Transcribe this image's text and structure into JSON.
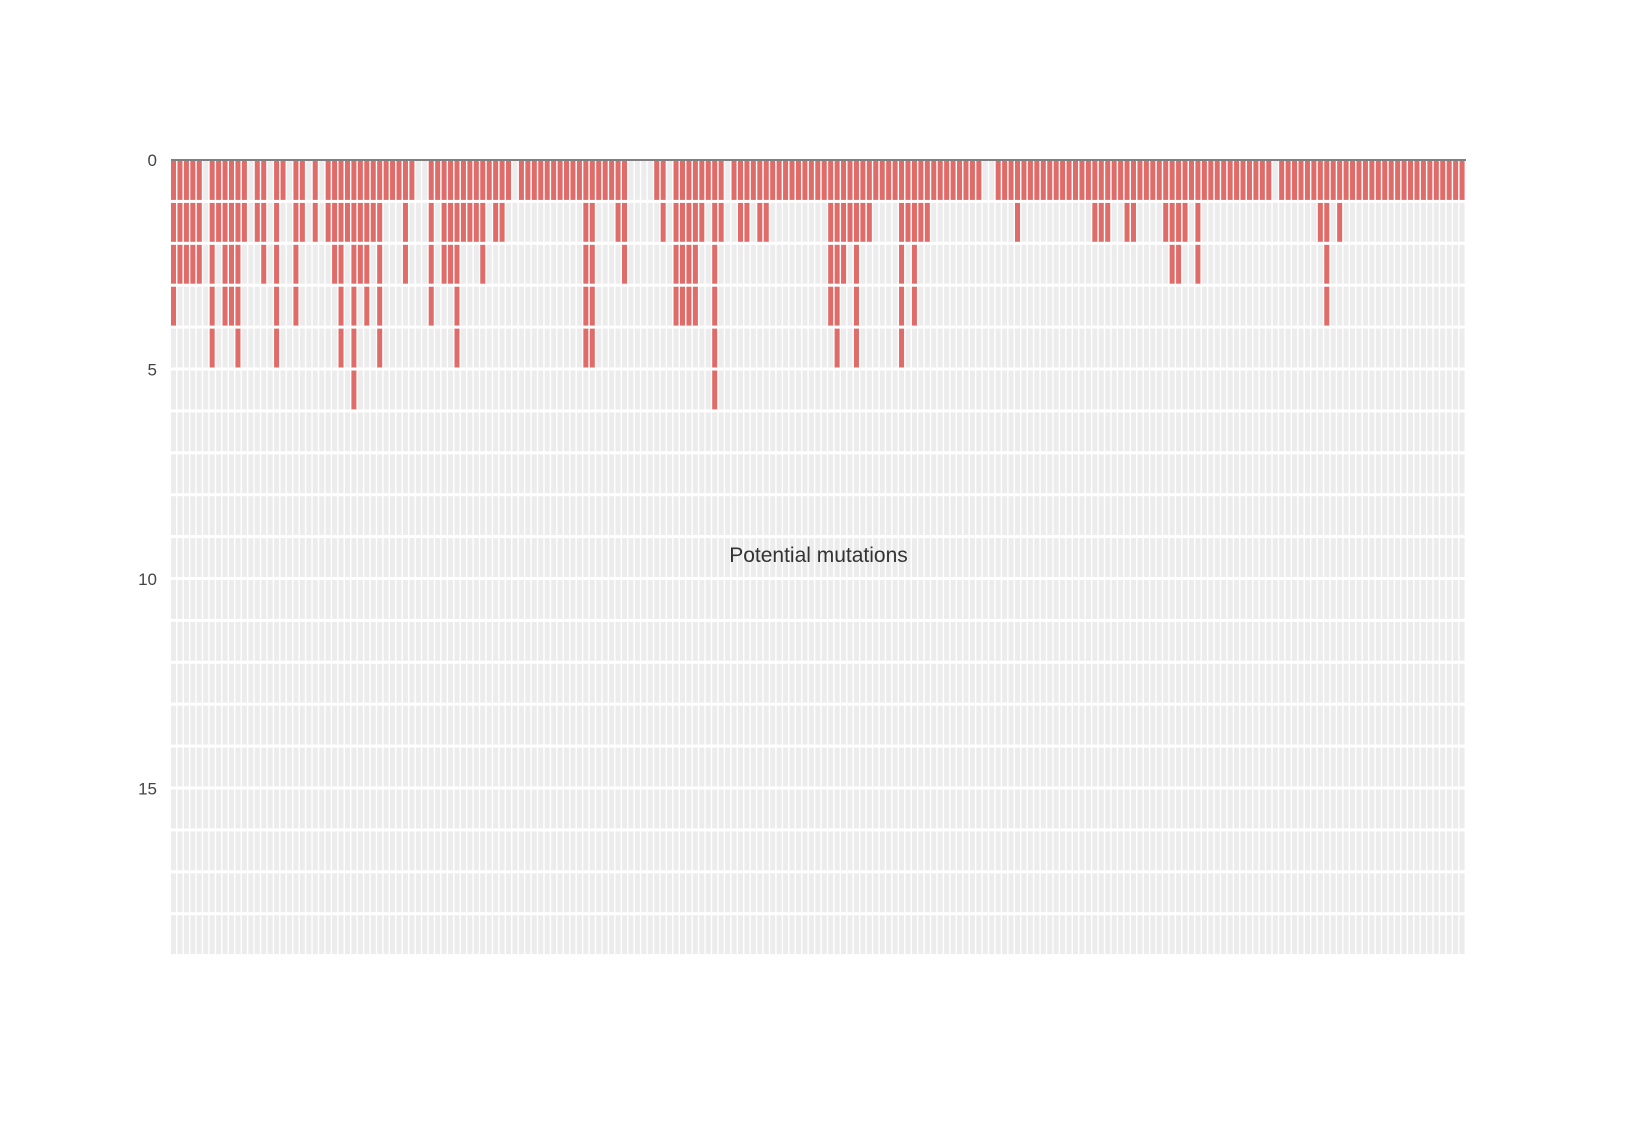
{
  "chart_data": {
    "type": "heatmap",
    "title": "",
    "xlabel": "",
    "ylabel": "",
    "annotation": "Potential mutations",
    "y_ticks": [
      0,
      5,
      10,
      15
    ],
    "rows": 19,
    "columns": 201,
    "ylim": [
      0,
      19
    ],
    "grid": false,
    "colors": {
      "observed": "#e06c6a",
      "potential": "#ececec",
      "baseline": "#555555",
      "tick_text": "#444444"
    },
    "observed_mutations_per_column": [
      4,
      3,
      3,
      3,
      3,
      0,
      5,
      2,
      4,
      4,
      5,
      2,
      0,
      2,
      3,
      0,
      5,
      1,
      0,
      4,
      2,
      0,
      2,
      0,
      2,
      3,
      5,
      2,
      6,
      3,
      4,
      2,
      5,
      1,
      1,
      1,
      3,
      1,
      0,
      0,
      4,
      1,
      3,
      3,
      5,
      2,
      2,
      2,
      3,
      1,
      2,
      2,
      1,
      0,
      1,
      1,
      1,
      1,
      1,
      1,
      1,
      1,
      1,
      1,
      5,
      5,
      1,
      1,
      1,
      2,
      3,
      0,
      0,
      0,
      0,
      1,
      2,
      0,
      4,
      4,
      4,
      4,
      2,
      1,
      6,
      2,
      0,
      1,
      2,
      2,
      1,
      2,
      2,
      1,
      1,
      1,
      1,
      1,
      1,
      1,
      1,
      1,
      4,
      5,
      3,
      2,
      5,
      2,
      2,
      1,
      1,
      1,
      1,
      5,
      2,
      4,
      2,
      2,
      1,
      1,
      1,
      1,
      1,
      1,
      1,
      1,
      0,
      0,
      1,
      1,
      1,
      2,
      1,
      1,
      1,
      1,
      1,
      1,
      1,
      1,
      1,
      1,
      1,
      2,
      2,
      2,
      1,
      1,
      2,
      2,
      1,
      1,
      1,
      1,
      2,
      3,
      3,
      2,
      1,
      3,
      1,
      1,
      1,
      1,
      1,
      1,
      1,
      1,
      1,
      1,
      1,
      0,
      1,
      1,
      1,
      1,
      1,
      1,
      2,
      4,
      1,
      2,
      1,
      1,
      1,
      1,
      1,
      1,
      1,
      1,
      1,
      1,
      1,
      1,
      1,
      1,
      1,
      1,
      1,
      1,
      1,
      1,
      1
    ]
  }
}
